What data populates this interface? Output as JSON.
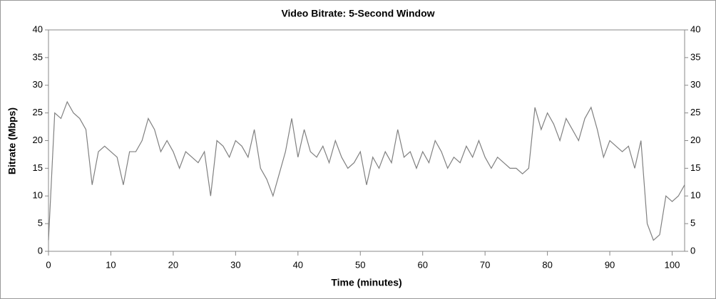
{
  "chart_data": {
    "type": "line",
    "title": "Video Bitrate: 5-Second Window",
    "x_label": "Time (minutes)",
    "y_label": "Bitrate (Mbps)",
    "x": [
      0,
      1,
      2,
      3,
      4,
      5,
      6,
      7,
      8,
      9,
      10,
      11,
      12,
      13,
      14,
      15,
      16,
      17,
      18,
      19,
      20,
      21,
      22,
      23,
      24,
      25,
      26,
      27,
      28,
      29,
      30,
      31,
      32,
      33,
      34,
      35,
      36,
      37,
      38,
      39,
      40,
      41,
      42,
      43,
      44,
      45,
      46,
      47,
      48,
      49,
      50,
      51,
      52,
      53,
      54,
      55,
      56,
      57,
      58,
      59,
      60,
      61,
      62,
      63,
      64,
      65,
      66,
      67,
      68,
      69,
      70,
      71,
      72,
      73,
      74,
      75,
      76,
      77,
      78,
      79,
      80,
      81,
      82,
      83,
      84,
      85,
      86,
      87,
      88,
      89,
      90,
      91,
      92,
      93,
      94,
      95,
      96,
      97,
      98,
      99,
      100,
      101,
      102
    ],
    "series": [
      {
        "name": "Video Bitrate",
        "color": "#808080",
        "values": [
          2,
          25,
          24,
          27,
          25,
          24,
          22,
          12,
          18,
          19,
          18,
          17,
          12,
          18,
          18,
          20,
          24,
          22,
          18,
          20,
          18,
          15,
          18,
          17,
          16,
          18,
          10,
          20,
          19,
          17,
          20,
          19,
          17,
          22,
          15,
          13,
          10,
          14,
          18,
          24,
          17,
          22,
          18,
          17,
          19,
          16,
          20,
          17,
          15,
          16,
          18,
          12,
          17,
          15,
          18,
          16,
          22,
          17,
          18,
          15,
          18,
          16,
          20,
          18,
          15,
          17,
          16,
          19,
          17,
          20,
          17,
          15,
          17,
          16,
          15,
          15,
          14,
          15,
          26,
          22,
          25,
          23,
          20,
          24,
          22,
          20,
          24,
          26,
          22,
          17,
          20,
          19,
          18,
          19,
          15,
          20,
          5,
          2,
          3,
          10,
          9,
          10,
          12
        ]
      }
    ],
    "xlim": [
      0,
      102
    ],
    "xticks": [
      0,
      10,
      20,
      30,
      40,
      50,
      60,
      70,
      80,
      90,
      100
    ],
    "ylim": [
      0,
      40
    ],
    "yticks": [
      0,
      5,
      10,
      15,
      20,
      25,
      30,
      35,
      40
    ],
    "y2lim": [
      0,
      40
    ],
    "y2ticks": [
      0,
      5,
      10,
      15,
      20,
      25,
      30,
      35,
      40
    ],
    "grid": false
  }
}
